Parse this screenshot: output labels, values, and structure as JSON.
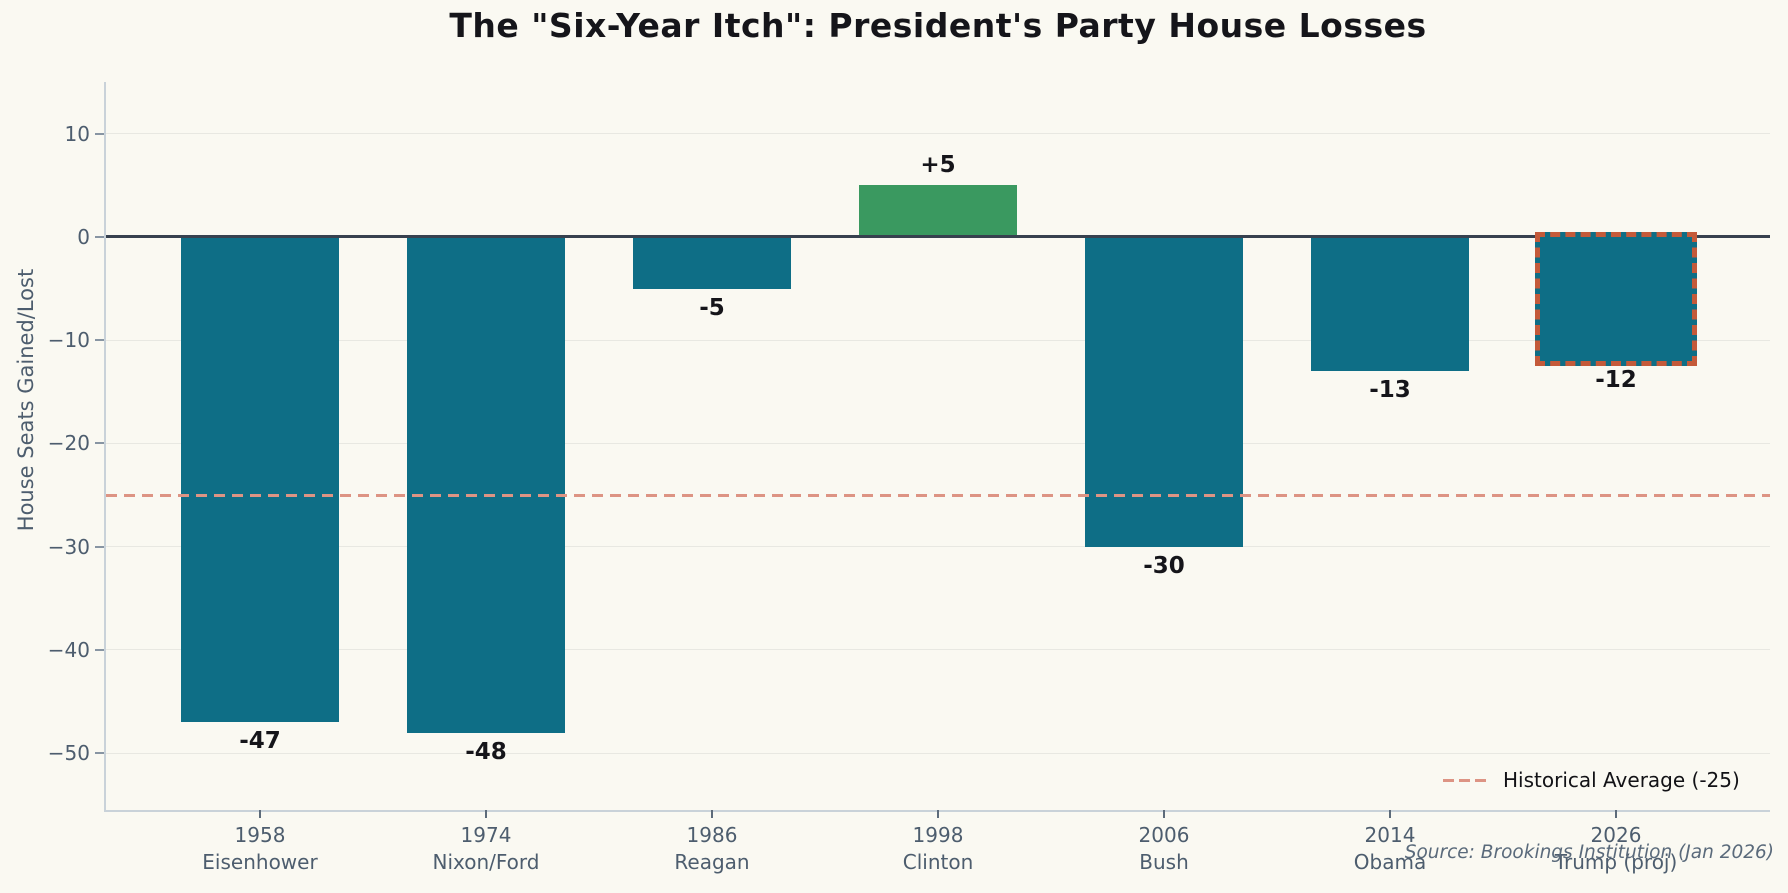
{
  "chart_data": {
    "type": "bar",
    "title": "The \"Six-Year Itch\": President's Party House Losses",
    "ylabel": "House Seats Gained/Lost",
    "categories": [
      {
        "year": "1958",
        "president": "Eisenhower"
      },
      {
        "year": "1974",
        "president": "Nixon/Ford"
      },
      {
        "year": "1986",
        "president": "Reagan"
      },
      {
        "year": "1998",
        "president": "Clinton"
      },
      {
        "year": "2006",
        "president": "Bush"
      },
      {
        "year": "2014",
        "president": "Obama"
      },
      {
        "year": "2026",
        "president": "Trump (proj)"
      }
    ],
    "values": [
      -47,
      -48,
      -5,
      5,
      -30,
      -13,
      -12
    ],
    "bar_labels": [
      "-47",
      "-48",
      "-5",
      "+5",
      "-30",
      "-13",
      "-12"
    ],
    "positive_index": 3,
    "projected_index": 6,
    "yticks": [
      10,
      0,
      -10,
      -20,
      -30,
      -40,
      -50
    ],
    "ytick_labels": [
      "10",
      "0",
      "−10",
      "−20",
      "−30",
      "−40",
      "−50"
    ],
    "ylim": [
      -55.5,
      15
    ],
    "grid": true,
    "average_line": {
      "value": -25,
      "label": "Historical Average (-25)"
    },
    "legend": {
      "position": "lower right",
      "entries": [
        {
          "label": "Historical Average (-25)",
          "style": "dashed"
        }
      ]
    },
    "source": "Source: Brookings Institution (Jan 2026)",
    "colors": {
      "background": "#faf9f2",
      "bar_negative": "#0e6e86",
      "bar_positive": "#3a9960",
      "projected_border": "#c45a3a",
      "average_line": "#dd9484",
      "zero_line": "#37414f",
      "grid_line": "#e8e8e2",
      "spine": "#c9d2d9",
      "tick_label": "#4d5d6e",
      "bar_label": "#15151a",
      "title": "#15151a",
      "source": "#5a6a7b"
    }
  }
}
